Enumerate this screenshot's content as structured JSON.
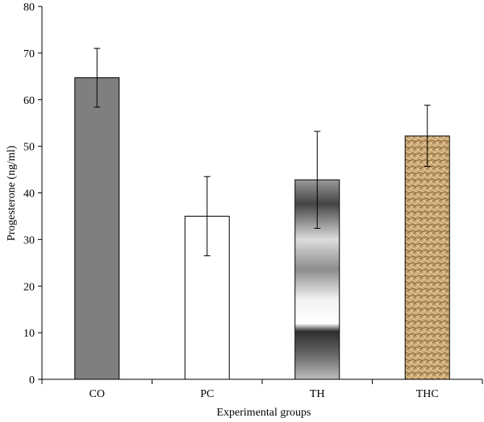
{
  "chart_data": {
    "type": "bar",
    "xlabel": "Experimental groups",
    "ylabel": "Progesterone (ng/ml)",
    "ylim": [
      0,
      80
    ],
    "yticks": [
      0,
      10,
      20,
      30,
      40,
      50,
      60,
      70,
      80
    ],
    "grid": false,
    "categories": [
      "CO",
      "PC",
      "TH",
      "THC"
    ],
    "values": [
      64.7,
      35.0,
      42.8,
      52.2
    ],
    "error_low": [
      58.4,
      26.5,
      32.4,
      45.7
    ],
    "error_high": [
      71.0,
      43.5,
      53.2,
      58.8
    ],
    "bar_fills": [
      "solid-gray",
      "white",
      "gradient-gray",
      "woven-tan"
    ],
    "colors": {
      "solid_gray": "#7f7f7f",
      "white": "#ffffff",
      "tan": "#c9a571",
      "tan_dark": "#8a6a3c",
      "axis": "#000000"
    }
  }
}
